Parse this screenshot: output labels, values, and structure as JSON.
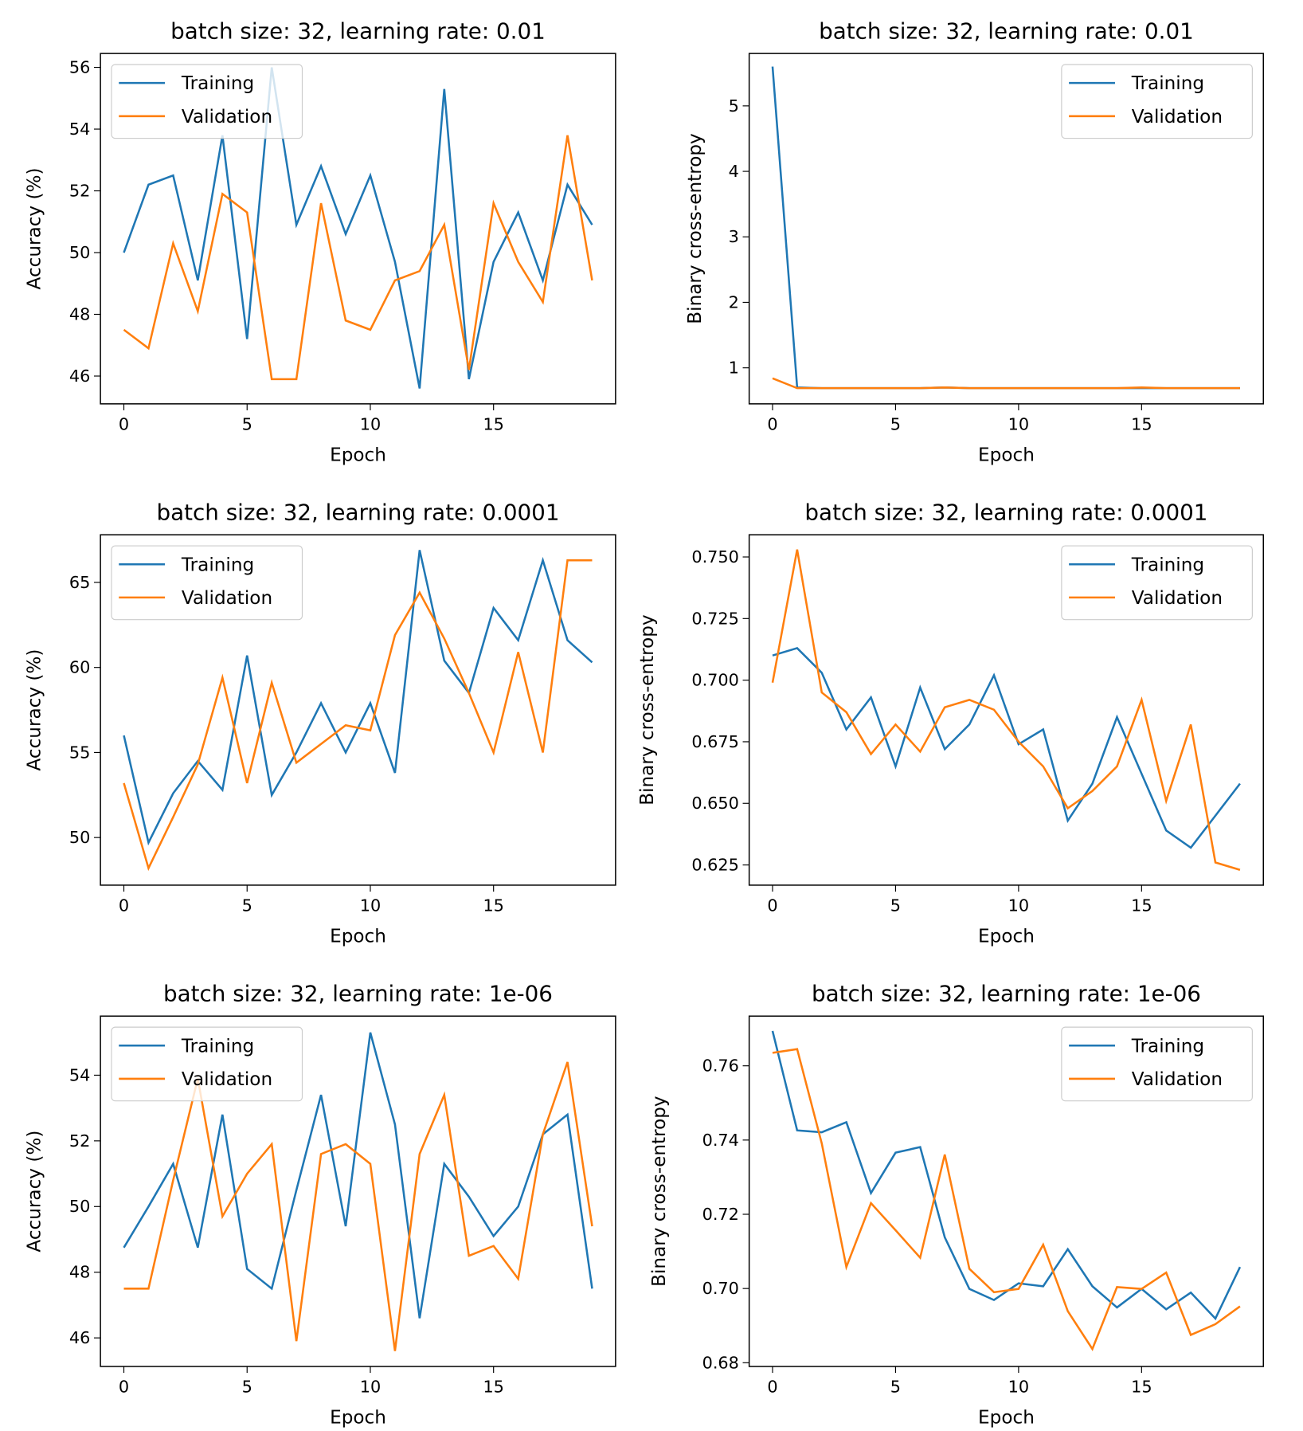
{
  "chart_data": [
    {
      "type": "line",
      "title": "batch size: 32, learning rate: 0.01",
      "x_label": "Epoch",
      "y_label": "Accuracy (%)",
      "x": [
        0,
        1,
        2,
        3,
        4,
        5,
        6,
        7,
        8,
        9,
        10,
        11,
        12,
        13,
        14,
        15,
        16,
        17,
        18,
        19
      ],
      "series": [
        {
          "name": "Training",
          "color": "#1f77b4",
          "values": [
            50.0,
            52.2,
            52.5,
            49.1,
            53.8,
            47.2,
            56.0,
            50.9,
            52.8,
            50.6,
            52.5,
            49.7,
            45.6,
            55.3,
            45.9,
            49.7,
            51.3,
            49.1,
            52.2,
            50.9
          ]
        },
        {
          "name": "Validation",
          "color": "#ff7f0e",
          "values": [
            47.5,
            46.9,
            50.3,
            48.1,
            51.9,
            51.3,
            45.9,
            45.9,
            51.6,
            47.8,
            47.5,
            49.1,
            49.4,
            50.9,
            46.2,
            51.6,
            49.7,
            48.4,
            53.8,
            49.1
          ]
        }
      ],
      "xlim": [
        -0.95,
        19.95
      ],
      "xticks": [
        0,
        5,
        10,
        15
      ],
      "ylim": [
        45.1,
        56.45
      ],
      "yticks": [
        46,
        48,
        50,
        52,
        54,
        56
      ],
      "legend": "upper left",
      "grid": false
    },
    {
      "type": "line",
      "title": "batch size: 32, learning rate: 0.01",
      "x_label": "Epoch",
      "y_label": "Binary cross-entropy",
      "x": [
        0,
        1,
        2,
        3,
        4,
        5,
        6,
        7,
        8,
        9,
        10,
        11,
        12,
        13,
        14,
        15,
        16,
        17,
        18,
        19
      ],
      "series": [
        {
          "name": "Training",
          "color": "#1f77b4",
          "values": [
            5.6,
            0.7,
            0.69,
            0.69,
            0.69,
            0.69,
            0.69,
            0.7,
            0.69,
            0.69,
            0.69,
            0.69,
            0.69,
            0.69,
            0.69,
            0.69,
            0.69,
            0.69,
            0.69,
            0.69
          ]
        },
        {
          "name": "Validation",
          "color": "#ff7f0e",
          "values": [
            0.84,
            0.69,
            0.69,
            0.69,
            0.69,
            0.69,
            0.69,
            0.7,
            0.69,
            0.69,
            0.69,
            0.69,
            0.69,
            0.69,
            0.69,
            0.7,
            0.69,
            0.69,
            0.69,
            0.69
          ]
        }
      ],
      "xlim": [
        -0.95,
        19.95
      ],
      "xticks": [
        0,
        5,
        10,
        15
      ],
      "ylim": [
        0.45,
        5.8
      ],
      "yticks": [
        1,
        2,
        3,
        4,
        5
      ],
      "legend": "upper right",
      "grid": false
    },
    {
      "type": "line",
      "title": "batch size: 32, learning rate: 0.0001",
      "x_label": "Epoch",
      "y_label": "Accuracy (%)",
      "x": [
        0,
        1,
        2,
        3,
        4,
        5,
        6,
        7,
        8,
        9,
        10,
        11,
        12,
        13,
        14,
        15,
        16,
        17,
        18,
        19
      ],
      "series": [
        {
          "name": "Training",
          "color": "#1f77b4",
          "values": [
            56.0,
            49.7,
            52.6,
            54.5,
            52.8,
            60.7,
            52.5,
            55.0,
            57.9,
            55.0,
            57.9,
            53.8,
            66.9,
            60.4,
            58.5,
            63.5,
            61.6,
            66.3,
            61.6,
            60.3
          ]
        },
        {
          "name": "Validation",
          "color": "#ff7f0e",
          "values": [
            53.2,
            48.2,
            51.2,
            54.3,
            59.4,
            53.2,
            59.1,
            54.4,
            55.5,
            56.6,
            56.3,
            61.9,
            64.4,
            61.7,
            58.5,
            55.0,
            60.9,
            55.0,
            66.3,
            66.3
          ]
        }
      ],
      "xlim": [
        -0.95,
        19.95
      ],
      "xticks": [
        0,
        5,
        10,
        15
      ],
      "ylim": [
        47.2,
        67.8
      ],
      "yticks": [
        50,
        55,
        60,
        65
      ],
      "legend": "upper left",
      "grid": false
    },
    {
      "type": "line",
      "title": "batch size: 32, learning rate: 0.0001",
      "x_label": "Epoch",
      "y_label": "Binary cross-entropy",
      "x": [
        0,
        1,
        2,
        3,
        4,
        5,
        6,
        7,
        8,
        9,
        10,
        11,
        12,
        13,
        14,
        15,
        16,
        17,
        18,
        19
      ],
      "series": [
        {
          "name": "Training",
          "color": "#1f77b4",
          "values": [
            0.71,
            0.713,
            0.703,
            0.68,
            0.693,
            0.665,
            0.697,
            0.672,
            0.682,
            0.702,
            0.674,
            0.68,
            0.643,
            0.658,
            0.685,
            0.662,
            0.639,
            0.632,
            0.645,
            0.658
          ]
        },
        {
          "name": "Validation",
          "color": "#ff7f0e",
          "values": [
            0.699,
            0.753,
            0.695,
            0.687,
            0.67,
            0.682,
            0.671,
            0.689,
            0.692,
            0.688,
            0.675,
            0.665,
            0.648,
            0.655,
            0.665,
            0.692,
            0.651,
            0.682,
            0.626,
            0.623
          ]
        }
      ],
      "xlim": [
        -0.95,
        19.95
      ],
      "xticks": [
        0,
        5,
        10,
        15
      ],
      "ylim": [
        0.6168,
        0.759
      ],
      "yticks": [
        0.625,
        {
          "value": 0.65,
          "label": "0.650"
        },
        0.675,
        {
          "value": 0.7,
          "label": "0.700"
        },
        0.725,
        {
          "value": 0.75,
          "label": "0.750"
        }
      ],
      "legend": "upper right",
      "grid": false
    },
    {
      "type": "line",
      "title": "batch size: 32, learning rate: 1e-06",
      "x_label": "Epoch",
      "y_label": "Accuracy (%)",
      "x": [
        0,
        1,
        2,
        3,
        4,
        5,
        6,
        7,
        8,
        9,
        10,
        11,
        12,
        13,
        14,
        15,
        16,
        17,
        18,
        19
      ],
      "series": [
        {
          "name": "Training",
          "color": "#1f77b4",
          "values": [
            48.75,
            50.0,
            51.3,
            48.75,
            52.8,
            48.1,
            47.5,
            50.5,
            53.4,
            49.4,
            55.3,
            52.5,
            46.6,
            51.3,
            50.3,
            49.1,
            50.0,
            52.2,
            52.8,
            47.5
          ]
        },
        {
          "name": "Validation",
          "color": "#ff7f0e",
          "values": [
            47.5,
            47.5,
            50.8,
            53.9,
            49.7,
            51.0,
            51.9,
            45.9,
            51.6,
            51.9,
            51.3,
            45.6,
            51.6,
            53.4,
            48.5,
            48.8,
            47.8,
            52.2,
            54.4,
            49.4
          ]
        }
      ],
      "xlim": [
        -0.95,
        19.95
      ],
      "xticks": [
        0,
        5,
        10,
        15
      ],
      "ylim": [
        45.13,
        55.8
      ],
      "yticks": [
        46,
        48,
        50,
        52,
        54
      ],
      "legend": "upper left",
      "grid": false
    },
    {
      "type": "line",
      "title": "batch size: 32, learning rate: 1e-06",
      "x_label": "Epoch",
      "y_label": "Binary cross-entropy",
      "x": [
        0,
        1,
        2,
        3,
        4,
        5,
        6,
        7,
        8,
        9,
        10,
        11,
        12,
        13,
        14,
        15,
        16,
        17,
        18,
        19
      ],
      "series": [
        {
          "name": "Training",
          "color": "#1f77b4",
          "values": [
            0.7694,
            0.7426,
            0.7421,
            0.7448,
            0.7257,
            0.7366,
            0.7381,
            0.7138,
            0.6999,
            0.6969,
            0.7014,
            0.7006,
            0.7106,
            0.7006,
            0.6949,
            0.6999,
            0.6944,
            0.6989,
            0.6919,
            0.7058
          ]
        },
        {
          "name": "Validation",
          "color": "#ff7f0e",
          "values": [
            0.7635,
            0.7645,
            0.7391,
            0.7058,
            0.723,
            0.7157,
            0.7083,
            0.7361,
            0.7053,
            0.699,
            0.6999,
            0.7118,
            0.6939,
            0.6837,
            0.7004,
            0.6999,
            0.7043,
            0.6875,
            0.6904,
            0.6952
          ]
        }
      ],
      "xlim": [
        -0.95,
        19.95
      ],
      "xticks": [
        0,
        5,
        10,
        15
      ],
      "ylim": [
        0.679,
        0.7734
      ],
      "yticks": [
        0.68,
        {
          "value": 0.7,
          "label": "0.70"
        },
        0.72,
        0.74,
        0.76
      ],
      "legend": "upper right",
      "grid": false
    }
  ]
}
